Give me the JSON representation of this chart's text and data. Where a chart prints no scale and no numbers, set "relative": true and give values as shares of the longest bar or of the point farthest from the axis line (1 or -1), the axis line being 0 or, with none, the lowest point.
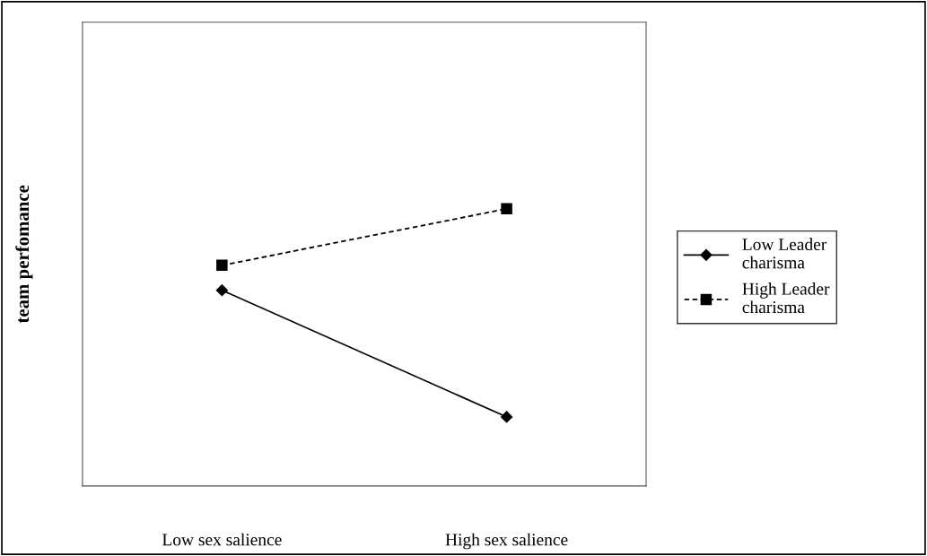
{
  "chart_data": {
    "type": "line",
    "ylabel": "team perfomance",
    "relative": true,
    "categories": [
      "Low sex salience",
      "High sex salience"
    ],
    "series": [
      {
        "name": "Low Leader charisma",
        "color": "#000000",
        "values": [
          0.706,
          0.249
        ],
        "marker": "diamond",
        "line_style": "solid"
      },
      {
        "name": "High Leader charisma",
        "color": "#000000",
        "values": [
          0.796,
          1.0
        ],
        "marker": "square",
        "line_style": "dashed"
      }
    ],
    "legend": "right",
    "grid": false
  }
}
